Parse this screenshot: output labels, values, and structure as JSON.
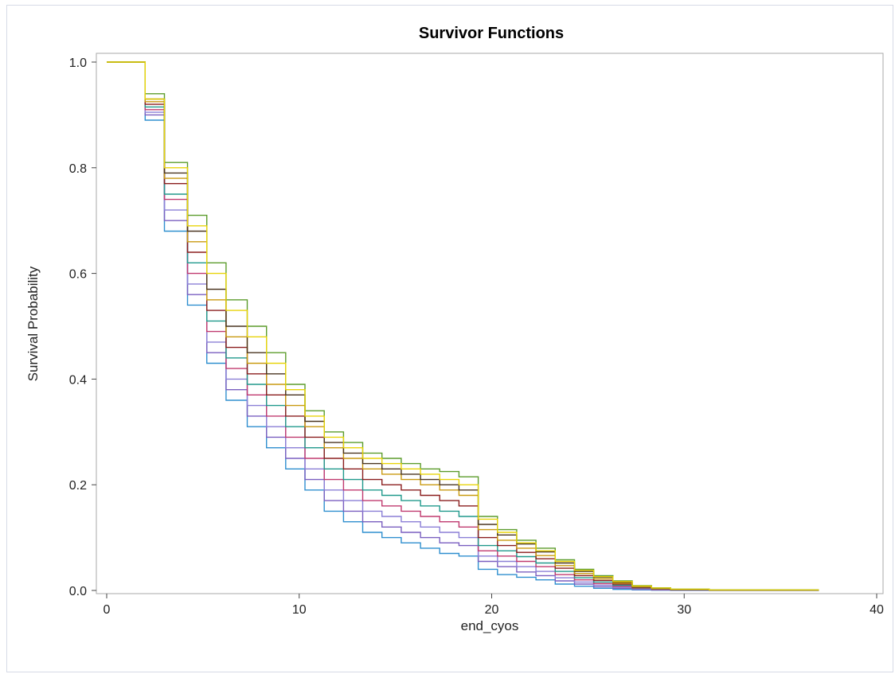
{
  "chart_data": {
    "type": "line",
    "step": true,
    "title": "Survivor Functions",
    "xlabel": "end_cyos",
    "ylabel": "Survival Probability",
    "xlim": [
      0,
      40
    ],
    "ylim": [
      0,
      1
    ],
    "xticks": [
      "0",
      "10",
      "20",
      "30",
      "40"
    ],
    "yticks": [
      "0.0",
      "0.2",
      "0.4",
      "0.6",
      "0.8",
      "1.0"
    ],
    "grid": false,
    "legend": "none",
    "x": [
      0,
      2,
      3,
      4.2,
      5.2,
      6.2,
      7.3,
      8.3,
      9.3,
      10.3,
      11.3,
      12.3,
      13.3,
      14.3,
      15.3,
      16.3,
      17.3,
      18.3,
      19.3,
      20.3,
      21.3,
      22.3,
      23.3,
      24.3,
      25.3,
      26.3,
      27.3,
      28.3,
      29.3,
      31.3,
      37
    ],
    "series": [
      {
        "color": "#2f8fcf",
        "values": [
          1.0,
          0.89,
          0.68,
          0.54,
          0.43,
          0.36,
          0.31,
          0.27,
          0.23,
          0.19,
          0.15,
          0.13,
          0.11,
          0.1,
          0.09,
          0.08,
          0.07,
          0.065,
          0.04,
          0.03,
          0.025,
          0.02,
          0.012,
          0.008,
          0.004,
          0.002,
          0.001,
          0.0005,
          0.0002,
          0.0001,
          0.0001
        ]
      },
      {
        "color": "#7a5fc0",
        "values": [
          1.0,
          0.9,
          0.7,
          0.56,
          0.45,
          0.38,
          0.33,
          0.29,
          0.25,
          0.21,
          0.17,
          0.15,
          0.13,
          0.12,
          0.11,
          0.1,
          0.09,
          0.085,
          0.055,
          0.045,
          0.035,
          0.028,
          0.018,
          0.012,
          0.007,
          0.004,
          0.002,
          0.001,
          0.0005,
          0.0002,
          0.0002
        ]
      },
      {
        "color": "#8b7fd6",
        "values": [
          1.0,
          0.905,
          0.72,
          0.58,
          0.47,
          0.4,
          0.35,
          0.31,
          0.27,
          0.23,
          0.19,
          0.17,
          0.15,
          0.14,
          0.13,
          0.12,
          0.11,
          0.1,
          0.065,
          0.055,
          0.045,
          0.036,
          0.024,
          0.016,
          0.01,
          0.006,
          0.003,
          0.0015,
          0.0008,
          0.0003,
          0.0003
        ]
      },
      {
        "color": "#c03a6f",
        "values": [
          1.0,
          0.91,
          0.74,
          0.6,
          0.49,
          0.42,
          0.37,
          0.33,
          0.29,
          0.25,
          0.21,
          0.19,
          0.17,
          0.16,
          0.15,
          0.14,
          0.13,
          0.12,
          0.075,
          0.065,
          0.055,
          0.045,
          0.03,
          0.02,
          0.013,
          0.008,
          0.004,
          0.002,
          0.001,
          0.0004,
          0.0004
        ]
      },
      {
        "color": "#20998c",
        "values": [
          1.0,
          0.915,
          0.75,
          0.62,
          0.51,
          0.44,
          0.39,
          0.35,
          0.31,
          0.27,
          0.23,
          0.21,
          0.19,
          0.18,
          0.17,
          0.16,
          0.15,
          0.14,
          0.085,
          0.075,
          0.064,
          0.052,
          0.036,
          0.024,
          0.016,
          0.01,
          0.005,
          0.0025,
          0.0012,
          0.0005,
          0.0005
        ]
      },
      {
        "color": "#8b1e1e",
        "values": [
          1.0,
          0.92,
          0.77,
          0.64,
          0.53,
          0.46,
          0.41,
          0.37,
          0.33,
          0.29,
          0.25,
          0.23,
          0.21,
          0.2,
          0.19,
          0.18,
          0.17,
          0.16,
          0.1,
          0.085,
          0.072,
          0.06,
          0.042,
          0.028,
          0.019,
          0.012,
          0.006,
          0.003,
          0.0015,
          0.0006,
          0.0006
        ]
      },
      {
        "color": "#c99a10",
        "values": [
          1.0,
          0.925,
          0.78,
          0.66,
          0.55,
          0.48,
          0.43,
          0.39,
          0.35,
          0.31,
          0.27,
          0.25,
          0.23,
          0.22,
          0.21,
          0.2,
          0.19,
          0.18,
          0.115,
          0.095,
          0.08,
          0.066,
          0.047,
          0.032,
          0.022,
          0.014,
          0.007,
          0.0035,
          0.0018,
          0.0007,
          0.0007
        ]
      },
      {
        "color": "#4a3520",
        "values": [
          1.0,
          0.93,
          0.79,
          0.68,
          0.57,
          0.5,
          0.45,
          0.41,
          0.37,
          0.32,
          0.28,
          0.26,
          0.24,
          0.23,
          0.22,
          0.21,
          0.2,
          0.19,
          0.125,
          0.105,
          0.088,
          0.073,
          0.052,
          0.036,
          0.025,
          0.016,
          0.008,
          0.004,
          0.002,
          0.0008,
          0.0008
        ]
      },
      {
        "color": "#5c9c2c",
        "values": [
          1.0,
          0.94,
          0.81,
          0.71,
          0.62,
          0.55,
          0.5,
          0.45,
          0.39,
          0.34,
          0.3,
          0.28,
          0.26,
          0.25,
          0.24,
          0.23,
          0.225,
          0.215,
          0.14,
          0.115,
          0.095,
          0.08,
          0.058,
          0.04,
          0.028,
          0.018,
          0.009,
          0.005,
          0.0025,
          0.001,
          0.001
        ]
      },
      {
        "color": "#e8d40a",
        "values": [
          1.0,
          0.93,
          0.8,
          0.69,
          0.6,
          0.53,
          0.48,
          0.43,
          0.38,
          0.33,
          0.29,
          0.27,
          0.25,
          0.24,
          0.23,
          0.22,
          0.21,
          0.2,
          0.135,
          0.11,
          0.09,
          0.075,
          0.055,
          0.038,
          0.026,
          0.017,
          0.0085,
          0.0045,
          0.0022,
          0.0009,
          0.0009
        ]
      }
    ]
  }
}
